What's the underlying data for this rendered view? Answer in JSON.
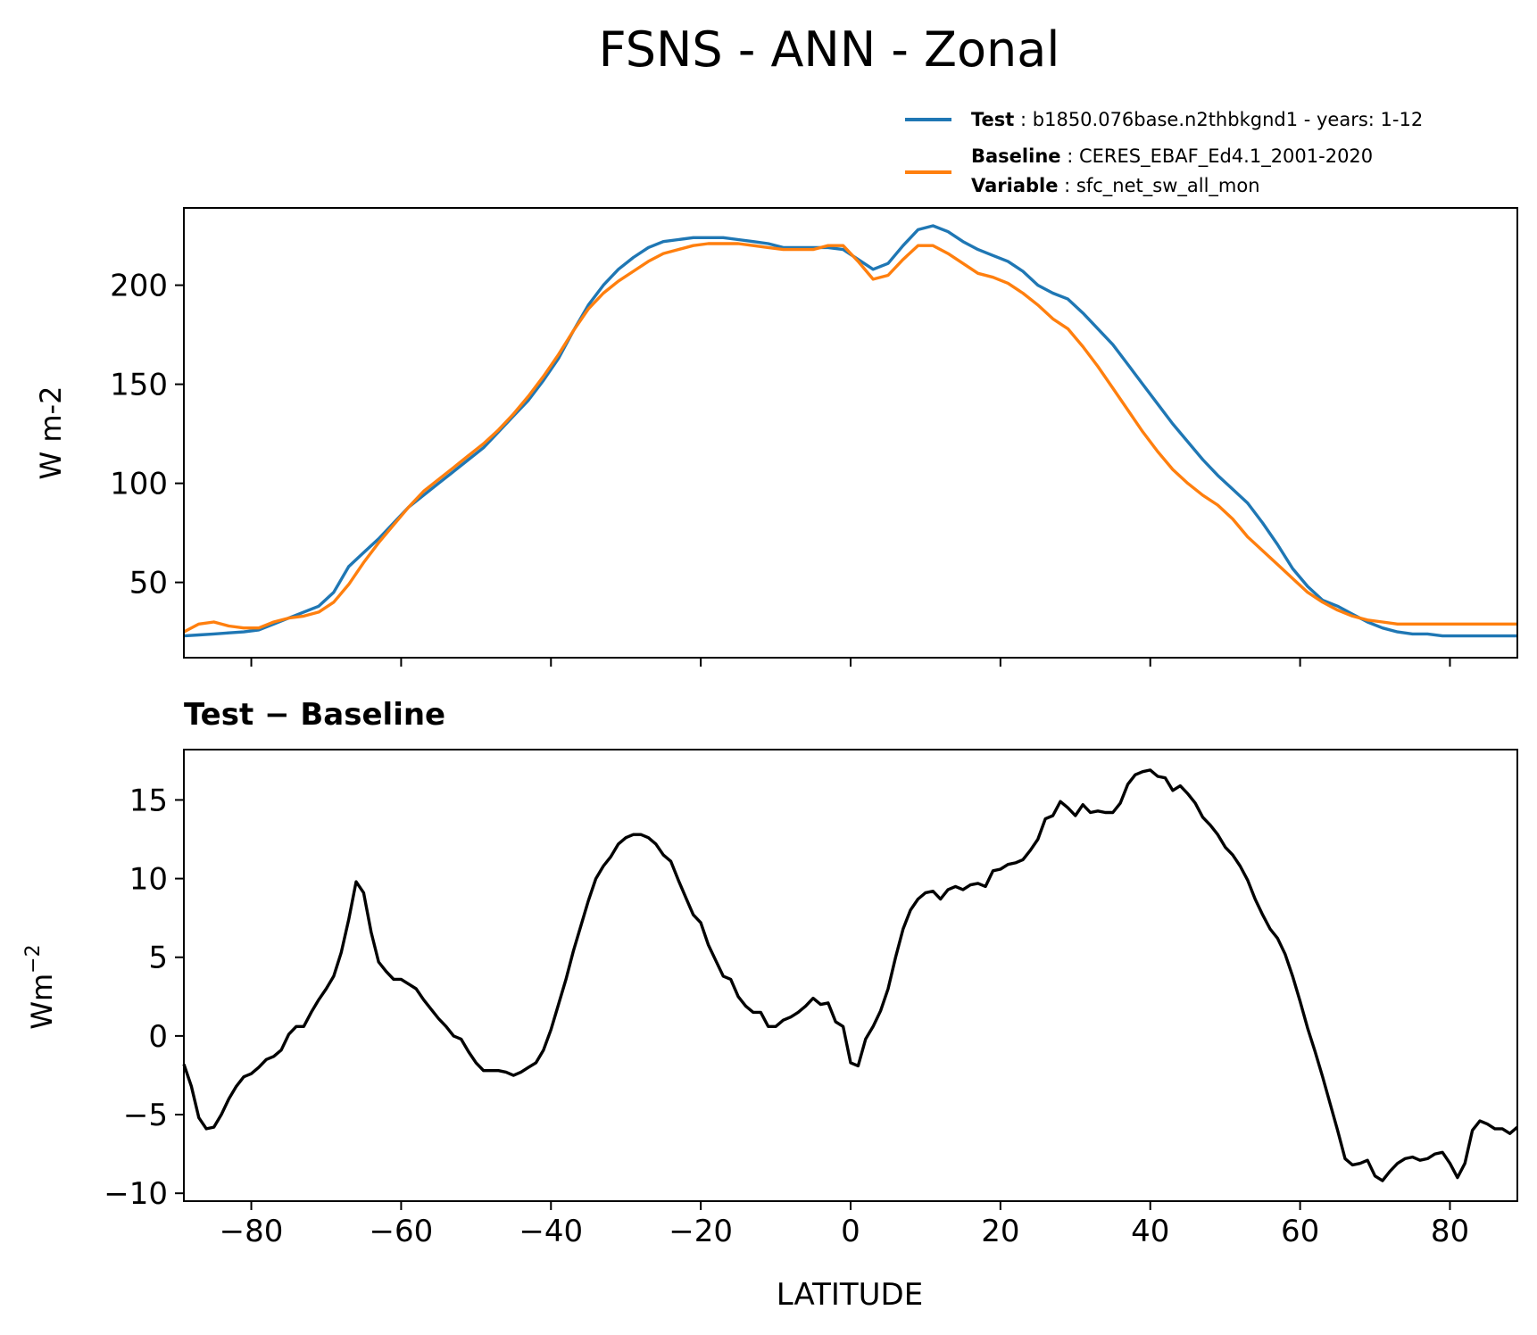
{
  "title": "FSNS - ANN - Zonal",
  "legend": {
    "test_key": "Test",
    "test_value": "b1850.076base.n2thbkgnd1 - years: 1-12",
    "baseline_key": "Baseline",
    "baseline_value": "CERES_EBAF_Ed4.1_2001-2020",
    "variable_key": "Variable",
    "variable_value": "sfc_net_sw_all_mon"
  },
  "colors": {
    "test": "#1f77b4",
    "baseline": "#ff7f0e",
    "diff": "#000000"
  },
  "chart_data": [
    {
      "type": "line",
      "title": "FSNS - ANN - Zonal",
      "xlabel": "",
      "ylabel": "W m-2",
      "xlim": [
        -89,
        89
      ],
      "ylim": [
        12,
        239
      ],
      "yticks": [
        50,
        100,
        150,
        200
      ],
      "xticks": [
        -80,
        -60,
        -40,
        -20,
        0,
        20,
        40,
        60,
        80
      ],
      "show_xticklabels": false,
      "x": [
        -89,
        -87,
        -85,
        -83,
        -81,
        -79,
        -77,
        -75,
        -73,
        -71,
        -69,
        -67,
        -65,
        -63,
        -61,
        -59,
        -57,
        -55,
        -53,
        -51,
        -49,
        -47,
        -45,
        -43,
        -41,
        -39,
        -37,
        -35,
        -33,
        -31,
        -29,
        -27,
        -25,
        -23,
        -21,
        -19,
        -17,
        -15,
        -13,
        -11,
        -9,
        -7,
        -5,
        -3,
        -1,
        1,
        3,
        5,
        7,
        9,
        11,
        13,
        15,
        17,
        19,
        21,
        23,
        25,
        27,
        29,
        31,
        33,
        35,
        37,
        39,
        41,
        43,
        45,
        47,
        49,
        51,
        53,
        55,
        57,
        59,
        61,
        63,
        65,
        67,
        69,
        71,
        73,
        75,
        77,
        79,
        81,
        83,
        85,
        87,
        89
      ],
      "series": [
        {
          "name": "Test",
          "values": [
            23,
            23.5,
            24,
            24.5,
            25,
            26,
            29,
            32,
            35,
            38,
            45,
            58,
            65,
            72,
            80,
            88,
            94,
            100,
            106,
            112,
            118,
            126,
            134,
            142,
            152,
            163,
            177,
            190,
            200,
            208,
            214,
            219,
            222,
            223,
            224,
            224,
            224,
            223,
            222,
            221,
            219,
            219,
            219,
            219,
            218,
            213,
            208,
            211,
            220,
            228,
            230,
            227,
            222,
            218,
            215,
            212,
            207,
            200,
            196,
            193,
            186,
            178,
            170,
            160,
            150,
            140,
            130,
            121,
            112,
            104,
            97,
            90,
            80,
            69,
            57,
            48,
            41,
            38,
            34,
            30,
            27,
            25,
            24,
            24,
            23,
            23,
            23,
            23,
            23,
            23
          ],
          "color": "#1f77b4"
        },
        {
          "name": "Baseline",
          "values": [
            25,
            29,
            30,
            28,
            27,
            27,
            30,
            32,
            33,
            35,
            40,
            49,
            60,
            70,
            79,
            88,
            96,
            102,
            108,
            114,
            120,
            127,
            135,
            144,
            154,
            165,
            177,
            188,
            196,
            202,
            207,
            212,
            216,
            218,
            220,
            221,
            221,
            221,
            220,
            219,
            218,
            218,
            218,
            220,
            220,
            212,
            203,
            205,
            213,
            220,
            220,
            216,
            211,
            206,
            204,
            201,
            196,
            190,
            183,
            178,
            169,
            159,
            148,
            137,
            126,
            116,
            107,
            100,
            94,
            89,
            82,
            73,
            66,
            59,
            52,
            45,
            40,
            36,
            33,
            31,
            30,
            29,
            29,
            29,
            29,
            29,
            29,
            29,
            29,
            29
          ],
          "color": "#ff7f0e"
        }
      ]
    },
    {
      "type": "line",
      "title": "Test − Baseline",
      "xlabel": "LATITUDE",
      "ylabel": "Wm",
      "ylabel_superscript": "−2",
      "xlim": [
        -89,
        89
      ],
      "ylim": [
        -10.5,
        18.2
      ],
      "yticks": [
        -10,
        -5,
        0,
        5,
        10,
        15
      ],
      "ytick_labels": [
        "−10",
        "−5",
        "0",
        "5",
        "10",
        "15"
      ],
      "xticks": [
        -80,
        -60,
        -40,
        -20,
        0,
        20,
        40,
        60,
        80
      ],
      "xtick_labels": [
        "−80",
        "−60",
        "−40",
        "−20",
        "0",
        "20",
        "40",
        "60",
        "80"
      ],
      "x": [
        -89,
        -88,
        -87,
        -86,
        -85,
        -84,
        -83,
        -82,
        -81,
        -80,
        -79,
        -78,
        -77,
        -76,
        -75,
        -74,
        -73,
        -72,
        -71,
        -70,
        -69,
        -68,
        -67,
        -66,
        -65,
        -64,
        -63,
        -62,
        -61,
        -60,
        -59,
        -58,
        -57,
        -56,
        -55,
        -54,
        -53,
        -52,
        -51,
        -50,
        -49,
        -48,
        -47,
        -46,
        -45,
        -44,
        -43,
        -42,
        -41,
        -40,
        -39,
        -38,
        -37,
        -36,
        -35,
        -34,
        -33,
        -32,
        -31,
        -30,
        -29,
        -28,
        -27,
        -26,
        -25,
        -24,
        -23,
        -22,
        -21,
        -20,
        -19,
        -18,
        -17,
        -16,
        -15,
        -14,
        -13,
        -12,
        -11,
        -10,
        -9,
        -8,
        -7,
        -6,
        -5,
        -4,
        -3,
        -2,
        -1,
        0,
        1,
        2,
        3,
        4,
        5,
        6,
        7,
        8,
        9,
        10,
        11,
        12,
        13,
        14,
        15,
        16,
        17,
        18,
        19,
        20,
        21,
        22,
        23,
        24,
        25,
        26,
        27,
        28,
        29,
        30,
        31,
        32,
        33,
        34,
        35,
        36,
        37,
        38,
        39,
        40,
        41,
        42,
        43,
        44,
        45,
        46,
        47,
        48,
        49,
        50,
        51,
        52,
        53,
        54,
        55,
        56,
        57,
        58,
        59,
        60,
        61,
        62,
        63,
        64,
        65,
        66,
        67,
        68,
        69,
        70,
        71,
        72,
        73,
        74,
        75,
        76,
        77,
        78,
        79,
        80,
        81,
        82,
        83,
        84,
        85,
        86,
        87,
        88,
        89
      ],
      "series": [
        {
          "name": "Test − Baseline",
          "values": [
            -1.8,
            -3.2,
            -5.2,
            -5.9,
            -5.8,
            -5.0,
            -4.0,
            -3.2,
            -2.6,
            -2.4,
            -2.0,
            -1.5,
            -1.3,
            -0.9,
            0.1,
            0.6,
            0.6,
            1.5,
            2.3,
            3.0,
            3.8,
            5.3,
            7.4,
            9.8,
            9.1,
            6.6,
            4.7,
            4.1,
            3.6,
            3.6,
            3.3,
            3.0,
            2.3,
            1.7,
            1.1,
            0.6,
            0.0,
            -0.2,
            -1.0,
            -1.7,
            -2.2,
            -2.2,
            -2.2,
            -2.3,
            -2.5,
            -2.3,
            -2.0,
            -1.7,
            -0.9,
            0.4,
            2.0,
            3.6,
            5.4,
            7.0,
            8.6,
            10.0,
            10.8,
            11.4,
            12.2,
            12.6,
            12.8,
            12.8,
            12.6,
            12.2,
            11.5,
            11.1,
            9.9,
            8.8,
            7.7,
            7.2,
            5.8,
            4.8,
            3.8,
            3.6,
            2.5,
            1.9,
            1.5,
            1.5,
            0.6,
            0.6,
            1.0,
            1.2,
            1.5,
            1.9,
            2.4,
            2.0,
            2.1,
            0.9,
            0.6,
            -1.7,
            -1.9,
            -0.2,
            0.6,
            1.6,
            3.0,
            5.0,
            6.8,
            8.0,
            8.7,
            9.1,
            9.2,
            8.7,
            9.3,
            9.5,
            9.3,
            9.6,
            9.7,
            9.5,
            10.5,
            10.6,
            10.9,
            11.0,
            11.2,
            11.8,
            12.5,
            13.8,
            14.0,
            14.9,
            14.5,
            14.0,
            14.7,
            14.2,
            14.3,
            14.2,
            14.2,
            14.8,
            16.0,
            16.6,
            16.8,
            16.9,
            16.5,
            16.4,
            15.6,
            15.9,
            15.4,
            14.8,
            13.9,
            13.4,
            12.8,
            12.0,
            11.5,
            10.8,
            9.9,
            8.7,
            7.7,
            6.8,
            6.2,
            5.2,
            3.8,
            2.2,
            0.5,
            -1.0,
            -2.6,
            -4.3,
            -6.0,
            -7.8,
            -8.2,
            -8.1,
            -7.9,
            -8.9,
            -9.2,
            -8.6,
            -8.1,
            -7.8,
            -7.7,
            -7.9,
            -7.8,
            -7.5,
            -7.4,
            -8.1,
            -9.0,
            -8.1,
            -6.0,
            -5.4,
            -5.6,
            -5.9,
            -5.9,
            -6.2,
            -5.8
          ],
          "color": "#000000"
        }
      ]
    }
  ]
}
